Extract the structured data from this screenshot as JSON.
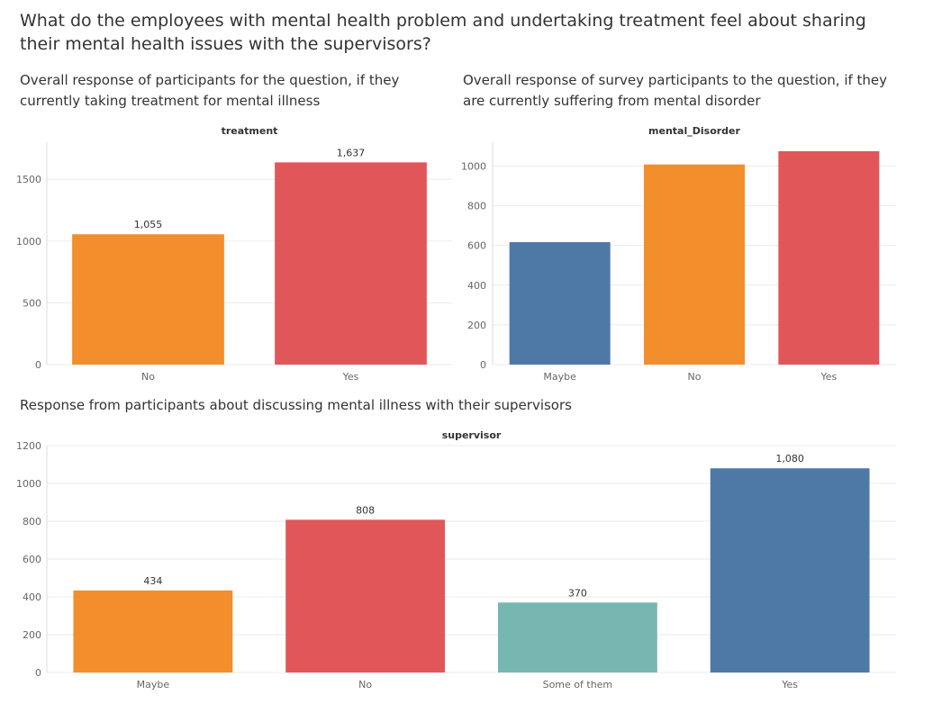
{
  "dashboard": {
    "title": "What do the employees with mental health problem and undertaking treatment feel about sharing their mental health issues with the supervisors?"
  },
  "colors": {
    "orange": "#F28E2B",
    "red": "#E15759",
    "blue": "#4E79A7",
    "teal": "#76B7B2",
    "grid": "#EBEBEB",
    "tick_text": "#666666"
  },
  "panels": {
    "treatment": {
      "caption": "Overall response of participants for the question, if they currently taking treatment for mental illness"
    },
    "mental_disorder": {
      "caption": "Overall response of survey participants to the question, if they are currently suffering from mental disorder"
    },
    "supervisor": {
      "caption": "Response from participants about discussing mental illness with their supervisors"
    }
  },
  "chart_data": [
    {
      "id": "treatment",
      "type": "bar",
      "title": "treatment",
      "categories": [
        "No",
        "Yes"
      ],
      "values": [
        1055,
        1637
      ],
      "data_labels": [
        "1,055",
        "1,637"
      ],
      "colors": [
        "#F28E2B",
        "#E15759"
      ],
      "ylim": [
        0,
        1800
      ],
      "yticks": [
        0,
        500,
        1000,
        1500
      ],
      "ytick_labels": [
        "0",
        "500",
        "1000",
        "1500"
      ],
      "grid": true
    },
    {
      "id": "mental_disorder",
      "type": "bar",
      "title": "mental_Disorder",
      "categories": [
        "Maybe",
        "No",
        "Yes"
      ],
      "values": [
        617,
        1008,
        1075
      ],
      "data_labels": [],
      "colors": [
        "#4E79A7",
        "#F28E2B",
        "#E15759"
      ],
      "ylim": [
        0,
        1120
      ],
      "yticks": [
        0,
        200,
        400,
        600,
        800,
        1000
      ],
      "ytick_labels": [
        "0",
        "200",
        "400",
        "600",
        "800",
        "1000"
      ],
      "grid": true
    },
    {
      "id": "supervisor",
      "type": "bar",
      "title": "supervisor",
      "categories": [
        "Maybe",
        "No",
        "Some of them",
        "Yes"
      ],
      "values": [
        434,
        808,
        370,
        1080
      ],
      "data_labels": [
        "434",
        "808",
        "370",
        "1,080"
      ],
      "colors": [
        "#F28E2B",
        "#E15759",
        "#76B7B2",
        "#4E79A7"
      ],
      "ylim": [
        0,
        1200
      ],
      "yticks": [
        0,
        200,
        400,
        600,
        800,
        1000,
        1200
      ],
      "ytick_labels": [
        "0",
        "200",
        "400",
        "600",
        "800",
        "1000",
        "1200"
      ],
      "grid": true
    }
  ]
}
